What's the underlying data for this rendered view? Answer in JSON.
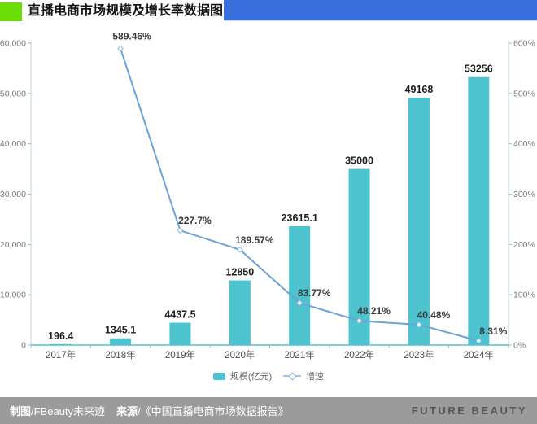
{
  "header": {
    "title": "直播电商市场规模及增长率数据图",
    "accent_green": "#6cde06",
    "accent_blue": "#3a6edc"
  },
  "chart_data": {
    "type": "bar",
    "subtype": "bar+line combo",
    "categories": [
      "2017年",
      "2018年",
      "2019年",
      "2020年",
      "2021年",
      "2022年",
      "2023年",
      "2024年"
    ],
    "series": [
      {
        "name": "规模(亿元)",
        "type": "bar",
        "values": [
          196.4,
          1345.1,
          4437.5,
          12850,
          23615.1,
          35000,
          49168,
          53256
        ],
        "color": "#4cc3ce"
      },
      {
        "name": "增速",
        "type": "line",
        "unit": "%",
        "values": [
          null,
          589.46,
          227.7,
          189.57,
          83.77,
          48.21,
          40.48,
          8.31
        ],
        "color": "#69a3d7",
        "marker": "hollow-diamond"
      }
    ],
    "bar_labels": [
      "196.4",
      "1345.1",
      "4437.5",
      "12850",
      "23615.1",
      "35000",
      "49168",
      "53256"
    ],
    "line_labels": [
      null,
      "589.46%",
      "227.7%",
      "189.57%",
      "83.77%",
      "48.21%",
      "40.48%",
      "8.31%"
    ],
    "left_axis": {
      "min": 0,
      "max": 60000,
      "tick_step": 10000,
      "tick_labels": [
        "0",
        "10,000",
        "20,000",
        "30,000",
        "40,000",
        "50,000",
        "60,000"
      ]
    },
    "right_axis": {
      "min": 0,
      "max": 600,
      "tick_step": 100,
      "tick_labels": [
        "0%",
        "100%",
        "200%",
        "300%",
        "400%",
        "500%",
        "600%"
      ]
    },
    "grid": false,
    "legend_position": "bottom",
    "axis_line_color": "#c2d8d9",
    "x_axis_line_color": "#55c0ca"
  },
  "legend": {
    "bar_label": "规模(亿元)",
    "line_label": "增速"
  },
  "footer": {
    "credit_label": "制图",
    "credit_value": "/FBeauty未来迹",
    "source_label": "来源",
    "source_value": "/《中国直播电商市场数据报告》",
    "brand": "FUTURE BEAUTY",
    "background": "#9b9b9b"
  }
}
